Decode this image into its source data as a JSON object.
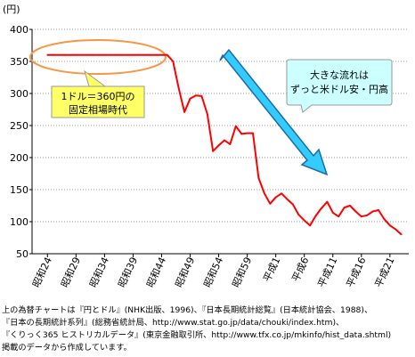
{
  "chart_data": {
    "type": "line",
    "unit_label": "(円)",
    "ylim": [
      50,
      400
    ],
    "y_ticks": [
      50,
      100,
      150,
      200,
      250,
      300,
      350,
      400
    ],
    "x_tick_labels": [
      "昭和24",
      "昭和29",
      "昭和34",
      "昭和39",
      "昭和44",
      "昭和49",
      "昭和54",
      "昭和59",
      "平成1",
      "平成6",
      "平成11",
      "平成16",
      "平成21"
    ],
    "x_tick_years": [
      1949,
      1954,
      1959,
      1964,
      1969,
      1974,
      1979,
      1984,
      1989,
      1994,
      1999,
      2004,
      2009
    ],
    "grid": true,
    "series": [
      {
        "color": "#ff0000",
        "x": [
          1949,
          1950,
          1951,
          1952,
          1953,
          1954,
          1955,
          1956,
          1957,
          1958,
          1959,
          1960,
          1961,
          1962,
          1963,
          1964,
          1965,
          1966,
          1967,
          1968,
          1969,
          1970,
          1971,
          1972,
          1973,
          1974,
          1975,
          1976,
          1977,
          1978,
          1979,
          1980,
          1981,
          1982,
          1983,
          1984,
          1985,
          1986,
          1987,
          1988,
          1989,
          1990,
          1991,
          1992,
          1993,
          1994,
          1995,
          1996,
          1997,
          1998,
          1999,
          2000,
          2001,
          2002,
          2003,
          2004,
          2005,
          2006,
          2007,
          2008,
          2009,
          2010,
          2011
        ],
        "values": [
          360,
          360,
          360,
          360,
          360,
          360,
          360,
          360,
          360,
          360,
          360,
          360,
          360,
          360,
          360,
          360,
          360,
          360,
          360,
          360,
          360,
          360,
          350,
          308,
          271,
          292,
          297,
          296,
          268,
          210,
          219,
          227,
          221,
          249,
          237,
          238,
          238,
          168,
          144,
          128,
          138,
          144,
          135,
          127,
          111,
          102,
          94,
          109,
          121,
          131,
          114,
          108,
          122,
          125,
          116,
          108,
          110,
          116,
          118,
          104,
          94,
          88,
          80
        ]
      }
    ],
    "annotations": [
      {
        "text": "1ドル＝360円の固定相場時代",
        "lines": [
          "1ドル＝360円の",
          "固定相場時代"
        ]
      },
      {
        "text": "大きな流れは ずっと米ドル安・円高",
        "lines": [
          "大きな流れは",
          "ずっと米ドル安・円高"
        ]
      }
    ]
  },
  "source_note": {
    "lines": [
      "上の為替チャートは『円とドル』(NHK出版、1996)、『日本長期統計総覧』(日本統計協会、1988)、",
      "『日本の長期統計系列』(総務省統計局、http://www.stat.go.jp/data/chouki/index.htm)、",
      "『くりっく365 ヒストリカルデータ』(東京金融取引所、http://www.tfx.co.jp/mkinfo/hist_data.shtml)",
      "掲載のデータから作成しています。"
    ]
  }
}
